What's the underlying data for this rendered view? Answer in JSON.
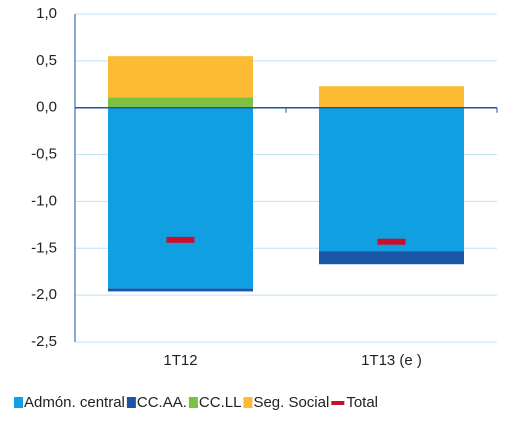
{
  "chart_data": {
    "type": "bar",
    "stacked": true,
    "grid": true,
    "categories": [
      "1T12",
      "1T13 (e )"
    ],
    "series": [
      {
        "name": "Admón. central",
        "color": "#10a0e2",
        "values": [
          -1.93,
          -1.53
        ]
      },
      {
        "name": "CC.AA.",
        "color": "#1a56a8",
        "values": [
          -0.03,
          -0.14
        ]
      },
      {
        "name": "CC.LL",
        "color": "#7cc143",
        "values": [
          0.11,
          0
        ]
      },
      {
        "name": "Seg. Social",
        "color": "#fbbb35",
        "values": [
          0.44,
          0.23
        ]
      },
      {
        "name": "Total",
        "type": "marker",
        "color": "#c8102e",
        "values": [
          -1.41,
          -1.43
        ]
      }
    ],
    "ylim": [
      -2.5,
      1.0
    ],
    "yticks": [
      {
        "value": 1.0,
        "label": "1,0"
      },
      {
        "value": 0.5,
        "label": "0,5"
      },
      {
        "value": 0,
        "label": "0,0"
      },
      {
        "value": -0.5,
        "label": "-0,5"
      },
      {
        "value": -1.0,
        "label": "-1,0"
      },
      {
        "value": -1.5,
        "label": "-1,5"
      },
      {
        "value": -2.0,
        "label": "-2,0"
      },
      {
        "value": -2.5,
        "label": "-2,5"
      }
    ]
  }
}
